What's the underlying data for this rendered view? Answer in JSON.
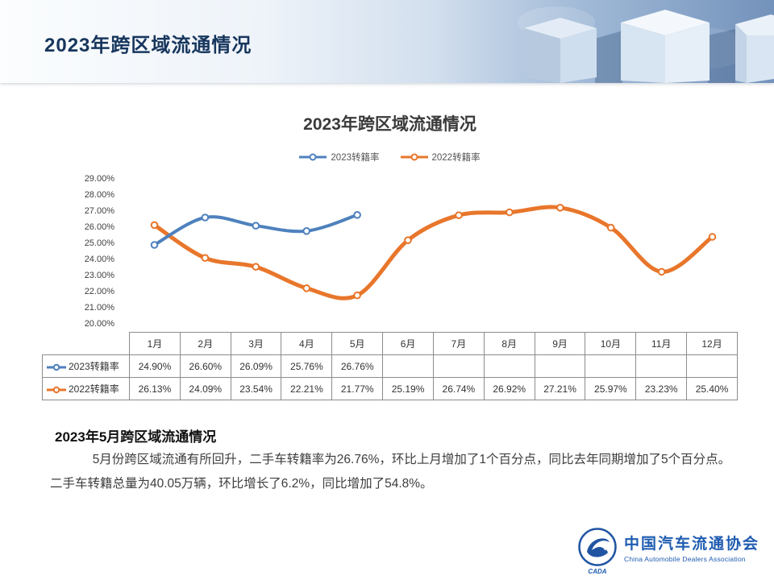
{
  "header": {
    "title": "2023年跨区域流通情况"
  },
  "chart_data": {
    "type": "line",
    "title": "2023年跨区域流通情况",
    "categories": [
      "1月",
      "2月",
      "3月",
      "4月",
      "5月",
      "6月",
      "7月",
      "8月",
      "9月",
      "10月",
      "11月",
      "12月"
    ],
    "series": [
      {
        "name": "2023转籍率",
        "color": "#4e81bd",
        "values": [
          24.9,
          26.6,
          26.09,
          25.76,
          26.76,
          null,
          null,
          null,
          null,
          null,
          null,
          null
        ]
      },
      {
        "name": "2022转籍率",
        "color": "#e8762b",
        "values": [
          26.13,
          24.09,
          23.54,
          22.21,
          21.77,
          25.19,
          26.74,
          26.92,
          27.21,
          25.97,
          23.23,
          25.4
        ]
      }
    ],
    "ylim": [
      20,
      29
    ],
    "ytick_labels": [
      "29.00%",
      "28.00%",
      "27.00%",
      "26.00%",
      "25.00%",
      "24.00%",
      "23.00%",
      "22.00%",
      "21.00%",
      "20.00%"
    ],
    "grid": false,
    "legend_position": "top-center"
  },
  "table": {
    "rows": [
      {
        "label": "2023转籍率",
        "values": [
          "24.90%",
          "26.60%",
          "26.09%",
          "25.76%",
          "26.76%",
          "",
          "",
          "",
          "",
          "",
          "",
          ""
        ]
      },
      {
        "label": "2022转籍率",
        "values": [
          "26.13%",
          "24.09%",
          "23.54%",
          "22.21%",
          "21.77%",
          "25.19%",
          "26.74%",
          "26.92%",
          "27.21%",
          "25.97%",
          "23.23%",
          "25.40%"
        ]
      }
    ]
  },
  "summary": {
    "heading": "2023年5月跨区域流通情况",
    "body": "5月份跨区域流通有所回升，二手车转籍率为26.76%，环比上月增加了1个百分点，同比去年同期增加了5个百分点。二手车转籍总量为40.05万辆，环比增长了6.2%，同比增加了54.8%。"
  },
  "footer": {
    "org_cn": "中国汽车流通协会",
    "org_en": "China Automobile Dealers Association",
    "logo_text": "CADA"
  }
}
